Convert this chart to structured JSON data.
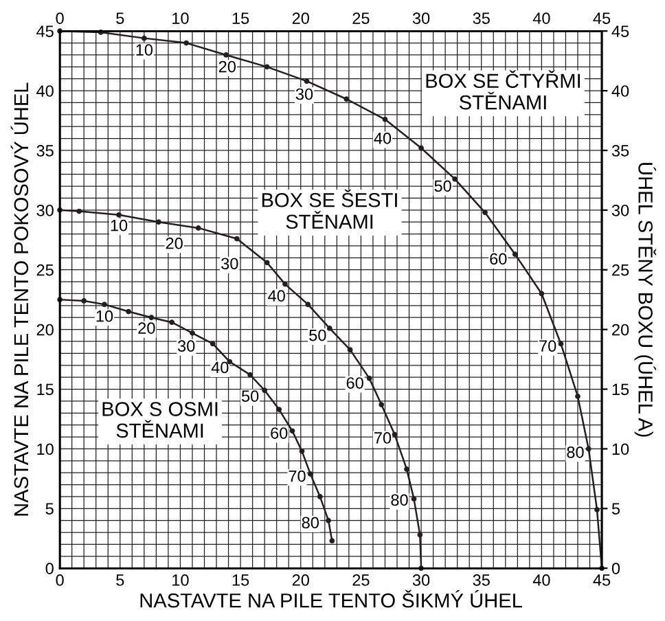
{
  "chart_data": {
    "type": "line",
    "xlabel": "NASTAVTE NA PILE TENTO ŠIKMÝ ÚHEL",
    "ylabel": "NASTAVTE NA PILE TENTO POKOSOVÝ ÚHEL",
    "y2label": "ÚHEL STĚNY BOXU (ÚHEL A)",
    "grid": true,
    "legend": false,
    "marker": "circle",
    "line_style": "solid",
    "xlim": [
      0,
      45
    ],
    "ylim": [
      0,
      45
    ],
    "x2lim": [
      0,
      45
    ],
    "y2lim": [
      0,
      45
    ],
    "xticks": [
      0,
      {
        "value": 1,
        "label": null
      },
      {
        "value": 2,
        "label": null
      },
      {
        "value": 3,
        "label": null
      },
      {
        "value": 4,
        "label": null
      },
      5,
      {
        "value": 6,
        "label": null
      },
      {
        "value": 7,
        "label": null
      },
      {
        "value": 8,
        "label": null
      },
      {
        "value": 9,
        "label": null
      },
      10,
      {
        "value": 11,
        "label": null
      },
      {
        "value": 12,
        "label": null
      },
      {
        "value": 13,
        "label": null
      },
      {
        "value": 14,
        "label": null
      },
      15,
      {
        "value": 16,
        "label": null
      },
      {
        "value": 17,
        "label": null
      },
      {
        "value": 18,
        "label": null
      },
      {
        "value": 19,
        "label": null
      },
      20,
      {
        "value": 21,
        "label": null
      },
      {
        "value": 22,
        "label": null
      },
      {
        "value": 23,
        "label": null
      },
      {
        "value": 24,
        "label": null
      },
      25,
      {
        "value": 26,
        "label": null
      },
      {
        "value": 27,
        "label": null
      },
      {
        "value": 28,
        "label": null
      },
      {
        "value": 29,
        "label": null
      },
      30,
      {
        "value": 31,
        "label": null
      },
      {
        "value": 32,
        "label": null
      },
      {
        "value": 33,
        "label": null
      },
      {
        "value": 34,
        "label": null
      },
      35,
      {
        "value": 36,
        "label": null
      },
      {
        "value": 37,
        "label": null
      },
      {
        "value": 38,
        "label": null
      },
      {
        "value": 39,
        "label": null
      },
      40,
      {
        "value": 41,
        "label": null
      },
      {
        "value": 42,
        "label": null
      },
      {
        "value": 43,
        "label": null
      },
      {
        "value": 44,
        "label": null
      },
      45
    ],
    "yticks": [
      0,
      {
        "value": 1,
        "label": null
      },
      {
        "value": 2,
        "label": null
      },
      {
        "value": 3,
        "label": null
      },
      {
        "value": 4,
        "label": null
      },
      5,
      {
        "value": 6,
        "label": null
      },
      {
        "value": 7,
        "label": null
      },
      {
        "value": 8,
        "label": null
      },
      {
        "value": 9,
        "label": null
      },
      10,
      {
        "value": 11,
        "label": null
      },
      {
        "value": 12,
        "label": null
      },
      {
        "value": 13,
        "label": null
      },
      {
        "value": 14,
        "label": null
      },
      15,
      {
        "value": 16,
        "label": null
      },
      {
        "value": 17,
        "label": null
      },
      {
        "value": 18,
        "label": null
      },
      {
        "value": 19,
        "label": null
      },
      20,
      {
        "value": 21,
        "label": null
      },
      {
        "value": 22,
        "label": null
      },
      {
        "value": 23,
        "label": null
      },
      {
        "value": 24,
        "label": null
      },
      25,
      {
        "value": 26,
        "label": null
      },
      {
        "value": 27,
        "label": null
      },
      {
        "value": 28,
        "label": null
      },
      {
        "value": 29,
        "label": null
      },
      30,
      {
        "value": 31,
        "label": null
      },
      {
        "value": 32,
        "label": null
      },
      {
        "value": 33,
        "label": null
      },
      {
        "value": 34,
        "label": null
      },
      35,
      {
        "value": 36,
        "label": null
      },
      {
        "value": 37,
        "label": null
      },
      {
        "value": 38,
        "label": null
      },
      {
        "value": 39,
        "label": null
      },
      40,
      {
        "value": 41,
        "label": null
      },
      {
        "value": 42,
        "label": null
      },
      {
        "value": 43,
        "label": null
      },
      {
        "value": 44,
        "label": null
      },
      45
    ],
    "x2ticks": [
      0,
      5,
      10,
      15,
      20,
      25,
      30,
      35,
      40,
      45
    ],
    "y2ticks": [
      0,
      5,
      10,
      15,
      20,
      25,
      30,
      35,
      40,
      45
    ],
    "series": [
      {
        "name": "BOX SE ČTYŘMI\nSTĚNAMI",
        "color": "#231f20",
        "x": [
          0,
          3.4,
          7,
          10.5,
          13.8,
          17.2,
          20.5,
          23.8,
          27,
          30,
          32.8,
          35.3,
          37.8,
          40,
          41.6,
          43,
          43.9,
          44.6,
          45
        ],
        "values": [
          45,
          44.9,
          44.4,
          44,
          43,
          42,
          40.8,
          39.3,
          37.6,
          35.2,
          32.6,
          29.8,
          26.3,
          23,
          18.8,
          14.4,
          10,
          4.9,
          0
        ]
      },
      {
        "name": "BOX SE ŠESTI\nSTĚNAMI",
        "color": "#231f20",
        "x": [
          0,
          1.6,
          4.9,
          8.2,
          11.5,
          14.7,
          17.2,
          18.7,
          20.6,
          22.4,
          24.1,
          25.7,
          26.7,
          27.8,
          28.8,
          29.4,
          29.9,
          30
        ],
        "values": [
          30,
          29.9,
          29.6,
          29,
          28.5,
          27.6,
          25.6,
          23.8,
          22.1,
          20.1,
          18.3,
          15.9,
          13.7,
          11.2,
          8.3,
          5.8,
          2.8,
          0
        ]
      },
      {
        "name": "BOX S OSMI\nSTĚNAMI",
        "color": "#231f20",
        "x": [
          0,
          2,
          3.7,
          5.7,
          7.6,
          9.3,
          11,
          12.7,
          14.1,
          15.8,
          17,
          18.2,
          19.3,
          20.1,
          20.8,
          21.6,
          22.3,
          22.6
        ],
        "values": [
          22.5,
          22.4,
          22.1,
          21.5,
          21,
          20.6,
          19.7,
          18.8,
          17.3,
          16.2,
          14.9,
          13.3,
          11.5,
          9.8,
          7.9,
          6,
          4,
          2.3
        ]
      }
    ],
    "annotations": [
      {
        "text": "10",
        "x": 7,
        "y": 43.3
      },
      {
        "text": "20",
        "x": 13.9,
        "y": 41.9
      },
      {
        "text": "30",
        "x": 20.3,
        "y": 39.6
      },
      {
        "text": "40",
        "x": 26.8,
        "y": 35.9
      },
      {
        "text": "50",
        "x": 31.8,
        "y": 31.9
      },
      {
        "text": "60",
        "x": 36.4,
        "y": 25.8
      },
      {
        "text": "70",
        "x": 40.5,
        "y": 18.5
      },
      {
        "text": "80",
        "x": 42.8,
        "y": 9.6
      },
      {
        "text": "10",
        "x": 4.9,
        "y": 28.6
      },
      {
        "text": "20",
        "x": 9.5,
        "y": 27.1
      },
      {
        "text": "30",
        "x": 14.1,
        "y": 25.4
      },
      {
        "text": "40",
        "x": 18,
        "y": 22.7
      },
      {
        "text": "50",
        "x": 21.4,
        "y": 19.4
      },
      {
        "text": "60",
        "x": 24.5,
        "y": 15.4
      },
      {
        "text": "70",
        "x": 26.8,
        "y": 10.8
      },
      {
        "text": "80",
        "x": 28.2,
        "y": 5.6
      },
      {
        "text": "10",
        "x": 3.7,
        "y": 21
      },
      {
        "text": "20",
        "x": 7.2,
        "y": 20
      },
      {
        "text": "30",
        "x": 10.5,
        "y": 18.5
      },
      {
        "text": "40",
        "x": 13.3,
        "y": 16.7
      },
      {
        "text": "50",
        "x": 15.8,
        "y": 14.3
      },
      {
        "text": "60",
        "x": 18.2,
        "y": 11.2
      },
      {
        "text": "70",
        "x": 19.7,
        "y": 7.6
      },
      {
        "text": "80",
        "x": 20.8,
        "y": 3.7
      }
    ]
  }
}
